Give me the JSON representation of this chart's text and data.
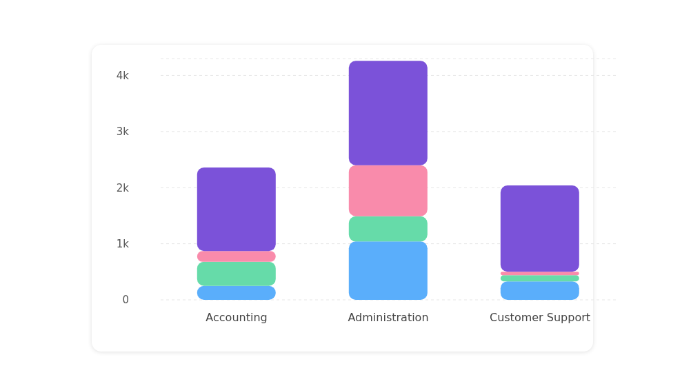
{
  "chart_data": {
    "type": "bar",
    "stacked": true,
    "categories": [
      "Accounting",
      "Administration",
      "Customer Support"
    ],
    "series": [
      {
        "color": "#5aaefb",
        "values": [
          250,
          1040,
          330
        ]
      },
      {
        "color": "#66dba9",
        "values": [
          430,
          450,
          110
        ]
      },
      {
        "color": "#f98bab",
        "values": [
          190,
          910,
          60
        ]
      },
      {
        "color": "#7b52d9",
        "values": [
          1490,
          1860,
          1540
        ]
      }
    ],
    "ylim": [
      0,
      4300
    ],
    "yticks": [
      0,
      {
        "value": 1000,
        "label": "1k"
      },
      {
        "value": 2000,
        "label": "2k"
      },
      {
        "value": 3000,
        "label": "3k"
      },
      {
        "value": 4000,
        "label": "4k"
      }
    ],
    "grid": "y",
    "legend": false
  }
}
